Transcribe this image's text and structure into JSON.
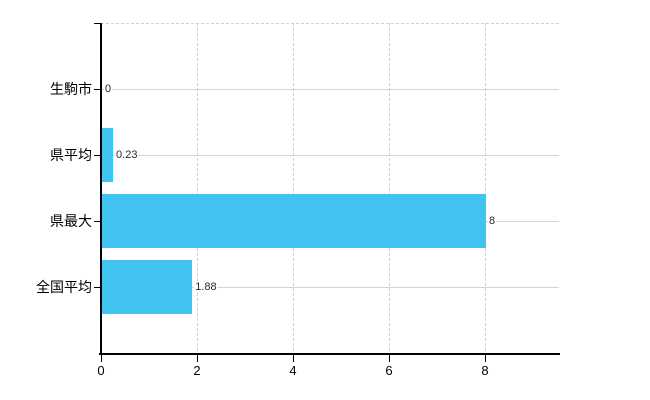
{
  "chart_data": {
    "type": "bar",
    "orientation": "horizontal",
    "title": "",
    "xlabel": "",
    "ylabel": "",
    "categories": [
      "生駒市",
      "県平均",
      "県最大",
      "全国平均"
    ],
    "values": [
      0,
      0.23,
      8,
      1.88
    ],
    "value_labels": [
      "0",
      "0.23",
      "8",
      "1.88"
    ],
    "x_ticks": [
      0,
      2,
      4,
      6,
      8
    ],
    "x_tick_labels": [
      "0",
      "2",
      "4",
      "6",
      "8"
    ],
    "xlim": [
      0,
      9.55
    ],
    "legend_position": "none",
    "grid": {
      "vertical_gridlines": "dashed",
      "horizontal_gridlines": "solid",
      "top_border": "dashed"
    },
    "colors": {
      "bar": "#41c3f1",
      "gridline": "#d2d2d2",
      "axis": "#000000",
      "value_label_text": "#2b2b2b",
      "background": "#ffffff"
    }
  }
}
